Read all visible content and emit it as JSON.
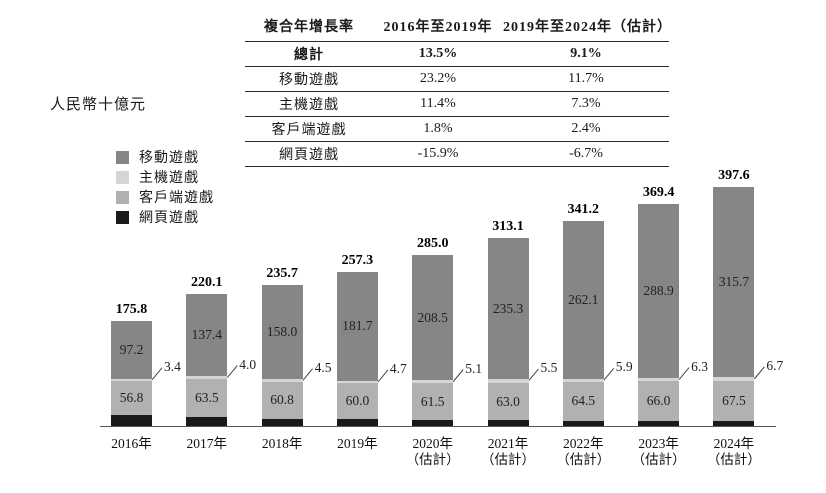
{
  "unit_label": "人民幣十億元",
  "cagr_table": {
    "header": [
      "複合年增長率",
      "2016年至2019年",
      "2019年至2024年（估計）"
    ],
    "rows": [
      {
        "label": "總計",
        "period1": "13.5%",
        "period2": "9.1%",
        "bold": true
      },
      {
        "label": "移動遊戲",
        "period1": "23.2%",
        "period2": "11.7%",
        "bold": false
      },
      {
        "label": "主機遊戲",
        "period1": "11.4%",
        "period2": "7.3%",
        "bold": false
      },
      {
        "label": "客戶端遊戲",
        "period1": "1.8%",
        "period2": "2.4%",
        "bold": false
      },
      {
        "label": "網頁遊戲",
        "period1": "-15.9%",
        "period2": "-6.7%",
        "bold": false
      }
    ]
  },
  "legend": {
    "items": [
      {
        "label": "移動遊戲",
        "color": "#868686"
      },
      {
        "label": "主機遊戲",
        "color": "#d5d5d5"
      },
      {
        "label": "客戶端遊戲",
        "color": "#b1b1b1"
      },
      {
        "label": "網頁遊戲",
        "color": "#1a1a1a"
      }
    ]
  },
  "chart_data": {
    "type": "bar",
    "stacked": true,
    "title": "",
    "xlabel": "",
    "ylabel": "人民幣十億元",
    "ylim": [
      0,
      420
    ],
    "grid": false,
    "legend_position": "left",
    "stack_order_bottom_to_top": [
      "網頁遊戲",
      "客戶端遊戲",
      "主機遊戲",
      "移動遊戲"
    ],
    "categories": [
      "2016年",
      "2017年",
      "2018年",
      "2019年",
      "2020年（估計）",
      "2021年（估計）",
      "2022年（估計）",
      "2023年（估計）",
      "2024年（估計）"
    ],
    "axis_labels": [
      {
        "line1": "2016年",
        "line2": ""
      },
      {
        "line1": "2017年",
        "line2": ""
      },
      {
        "line1": "2018年",
        "line2": ""
      },
      {
        "line1": "2019年",
        "line2": ""
      },
      {
        "line1": "2020年",
        "line2": "（估計）"
      },
      {
        "line1": "2021年",
        "line2": "（估計）"
      },
      {
        "line1": "2022年",
        "line2": "（估計）"
      },
      {
        "line1": "2023年",
        "line2": "（估計）"
      },
      {
        "line1": "2024年",
        "line2": "（估計）"
      }
    ],
    "series": [
      {
        "name": "移動遊戲",
        "values": [
          97.2,
          137.4,
          158.0,
          181.7,
          208.5,
          235.3,
          262.1,
          288.9,
          315.7
        ],
        "labels_shown": true,
        "label_style": "inside"
      },
      {
        "name": "主機遊戲",
        "values": [
          3.4,
          4.0,
          4.5,
          4.7,
          5.1,
          5.5,
          5.9,
          6.3,
          6.7
        ],
        "labels_shown": true,
        "label_style": "callout"
      },
      {
        "name": "客戶端遊戲",
        "values": [
          56.8,
          63.5,
          60.8,
          60.0,
          61.5,
          63.0,
          64.5,
          66.0,
          67.5
        ],
        "labels_shown": true,
        "label_style": "inside"
      },
      {
        "name": "網頁遊戲",
        "values": [
          18.4,
          15.2,
          12.4,
          10.9,
          9.9,
          9.3,
          8.7,
          8.2,
          7.7
        ],
        "labels_shown": false,
        "note": "segment values not labeled in figure; derived as total minus labeled segments"
      }
    ],
    "totals": [
      175.8,
      220.1,
      235.7,
      257.3,
      285.0,
      313.1,
      341.2,
      369.4,
      397.6
    ]
  }
}
